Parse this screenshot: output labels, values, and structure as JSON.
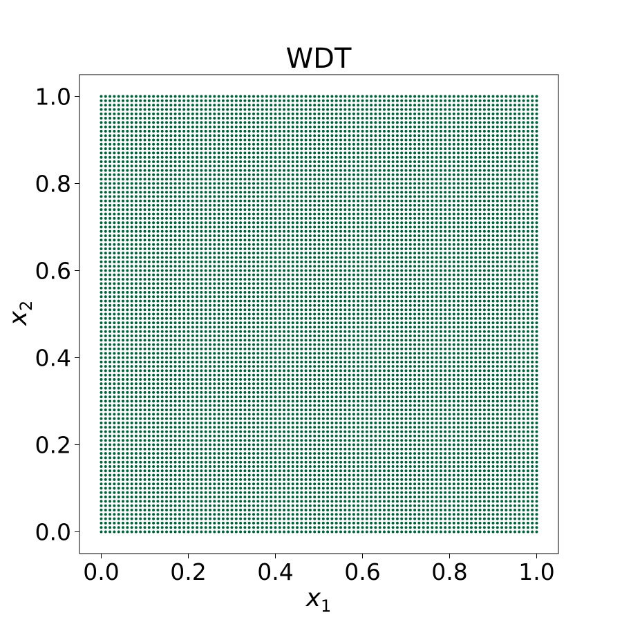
{
  "chart_data": {
    "type": "scatter",
    "title": "WDT",
    "xlabel": "x",
    "xlabel_subscript": "1",
    "ylabel": "x",
    "ylabel_subscript": "2",
    "xlim": [
      -0.05,
      1.05
    ],
    "ylim": [
      -0.05,
      1.05
    ],
    "x_ticks": [
      0.0,
      0.2,
      0.4,
      0.6,
      0.8,
      1.0
    ],
    "x_tick_labels": [
      "0.0",
      "0.2",
      "0.4",
      "0.6",
      "0.8",
      "1.0"
    ],
    "y_ticks": [
      0.0,
      0.2,
      0.4,
      0.6,
      0.8,
      1.0
    ],
    "y_tick_labels": [
      "0.0",
      "0.2",
      "0.4",
      "0.6",
      "0.8",
      "1.0"
    ],
    "grid": false,
    "series": [
      {
        "grid_points_per_axis": 101,
        "x_range": [
          0.0,
          1.0
        ],
        "y_range": [
          0.0,
          1.0
        ],
        "color": "#00603a"
      }
    ]
  }
}
